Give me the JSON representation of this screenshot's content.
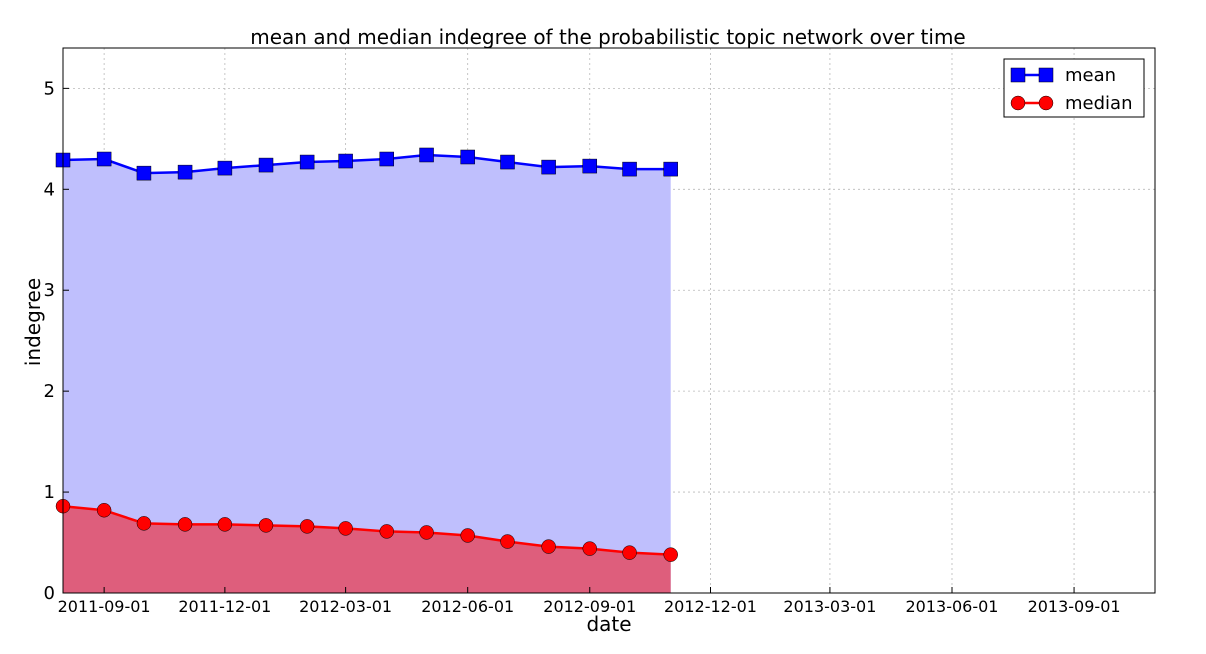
{
  "chart_data": {
    "type": "area",
    "title": "mean and median indegree of the probabilistic topic network over time",
    "xlabel": "date",
    "ylabel": "indegree",
    "ylim": [
      0,
      5.4
    ],
    "xlim": [
      "2011-08-01",
      "2013-11-01"
    ],
    "grid": true,
    "legend_position": "top-right",
    "x_tick_labels": [
      "2011-09-01",
      "2011-12-01",
      "2012-03-01",
      "2012-06-01",
      "2012-09-01",
      "2012-12-01",
      "2013-03-01",
      "2013-06-01",
      "2013-09-01"
    ],
    "y_tick_labels": [
      "0",
      "1",
      "2",
      "3",
      "4",
      "5"
    ],
    "y_ticks": [
      0,
      1,
      2,
      3,
      4,
      5
    ],
    "x": [
      "2011-08-01",
      "2011-09-01",
      "2011-10-01",
      "2011-11-01",
      "2011-12-01",
      "2012-01-01",
      "2012-02-01",
      "2012-03-01",
      "2012-04-01",
      "2012-05-01",
      "2012-06-01",
      "2012-07-01",
      "2012-08-01",
      "2012-09-01",
      "2012-10-01",
      "2012-11-01"
    ],
    "series": [
      {
        "name": "mean",
        "color": "#0000ff",
        "fill_color": "#bfbffd",
        "marker": "square",
        "values": [
          4.29,
          4.3,
          4.16,
          4.17,
          4.21,
          4.24,
          4.27,
          4.28,
          4.3,
          4.34,
          4.32,
          4.27,
          4.22,
          4.23,
          4.2,
          4.2
        ]
      },
      {
        "name": "median",
        "color": "#ff0000",
        "fill_color": "#de5e7c",
        "marker": "circle",
        "values": [
          0.86,
          0.82,
          0.69,
          0.68,
          0.68,
          0.67,
          0.66,
          0.64,
          0.61,
          0.6,
          0.57,
          0.51,
          0.46,
          0.44,
          0.4,
          0.38
        ]
      }
    ]
  }
}
